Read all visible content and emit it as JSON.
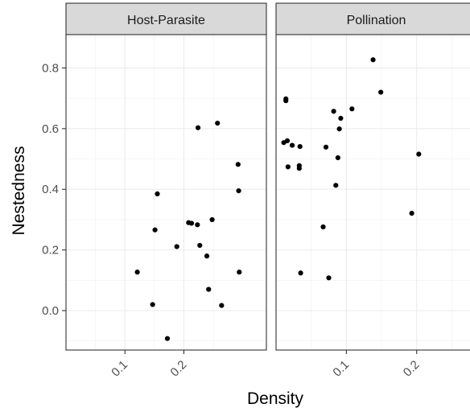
{
  "chart_data": {
    "type": "scatter",
    "xlabel": "Density",
    "ylabel": "Nestedness",
    "ylim": [
      -0.13,
      0.91
    ],
    "y_ticks": [
      0.0,
      0.2,
      0.4,
      0.6,
      0.8
    ],
    "y_tick_labels": [
      "0.0",
      "0.2",
      "0.4",
      "0.6",
      "0.8"
    ],
    "x_tick_labels": [
      "0.1",
      "0.2"
    ],
    "grid": true,
    "point_color": "#000000",
    "strip_fill": "#d9d9d9",
    "panels": [
      {
        "strip_label": "Host-Parasite",
        "xlim": [
          0.0,
          0.34
        ],
        "x_ticks": [
          0.1,
          0.2
        ],
        "points": [
          {
            "x": 0.121,
            "y": 0.127
          },
          {
            "x": 0.147,
            "y": 0.02
          },
          {
            "x": 0.151,
            "y": 0.266
          },
          {
            "x": 0.155,
            "y": 0.385
          },
          {
            "x": 0.172,
            "y": -0.092
          },
          {
            "x": 0.188,
            "y": 0.211
          },
          {
            "x": 0.208,
            "y": 0.29
          },
          {
            "x": 0.213,
            "y": 0.288
          },
          {
            "x": 0.223,
            "y": 0.283
          },
          {
            "x": 0.224,
            "y": 0.603
          },
          {
            "x": 0.227,
            "y": 0.215
          },
          {
            "x": 0.239,
            "y": 0.18
          },
          {
            "x": 0.242,
            "y": 0.07
          },
          {
            "x": 0.248,
            "y": 0.3
          },
          {
            "x": 0.257,
            "y": 0.618
          },
          {
            "x": 0.264,
            "y": 0.017
          },
          {
            "x": 0.292,
            "y": 0.482
          },
          {
            "x": 0.293,
            "y": 0.395
          },
          {
            "x": 0.294,
            "y": 0.127
          }
        ]
      },
      {
        "strip_label": "Pollination",
        "xlim": [
          0.0,
          0.285
        ],
        "x_ticks": [
          0.1,
          0.2
        ],
        "points": [
          {
            "x": 0.011,
            "y": 0.554
          },
          {
            "x": 0.014,
            "y": 0.698
          },
          {
            "x": 0.014,
            "y": 0.692
          },
          {
            "x": 0.016,
            "y": 0.56
          },
          {
            "x": 0.017,
            "y": 0.474
          },
          {
            "x": 0.023,
            "y": 0.545
          },
          {
            "x": 0.033,
            "y": 0.469
          },
          {
            "x": 0.033,
            "y": 0.478
          },
          {
            "x": 0.034,
            "y": 0.541
          },
          {
            "x": 0.035,
            "y": 0.124
          },
          {
            "x": 0.067,
            "y": 0.276
          },
          {
            "x": 0.071,
            "y": 0.539
          },
          {
            "x": 0.075,
            "y": 0.108
          },
          {
            "x": 0.082,
            "y": 0.657
          },
          {
            "x": 0.085,
            "y": 0.413
          },
          {
            "x": 0.088,
            "y": 0.504
          },
          {
            "x": 0.09,
            "y": 0.599
          },
          {
            "x": 0.092,
            "y": 0.634
          },
          {
            "x": 0.108,
            "y": 0.665
          },
          {
            "x": 0.138,
            "y": 0.827
          },
          {
            "x": 0.149,
            "y": 0.72
          },
          {
            "x": 0.193,
            "y": 0.321
          },
          {
            "x": 0.203,
            "y": 0.516
          }
        ]
      }
    ]
  }
}
